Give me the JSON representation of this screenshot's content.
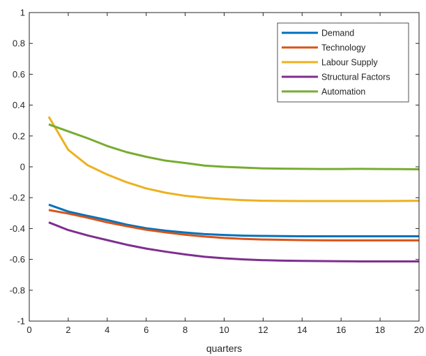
{
  "chart_data": {
    "type": "line",
    "title": "",
    "xlabel": "quarters",
    "ylabel": "",
    "xlim": [
      0,
      20
    ],
    "ylim": [
      -1,
      1
    ],
    "xticks": [
      0,
      2,
      4,
      6,
      8,
      10,
      12,
      14,
      16,
      18,
      20
    ],
    "yticks": [
      -1,
      -0.8,
      -0.6,
      -0.4,
      -0.2,
      0,
      0.2,
      0.4,
      0.6,
      0.8,
      1
    ],
    "grid": false,
    "legend_position": "top-right",
    "x": [
      1,
      2,
      3,
      4,
      5,
      6,
      7,
      8,
      9,
      10,
      11,
      12,
      13,
      14,
      15,
      16,
      17,
      18,
      19,
      20
    ],
    "series": [
      {
        "name": "Demand",
        "color": "#0072BD",
        "values": [
          -0.245,
          -0.29,
          -0.318,
          -0.345,
          -0.375,
          -0.398,
          -0.414,
          -0.426,
          -0.436,
          -0.442,
          -0.446,
          -0.448,
          -0.449,
          -0.45,
          -0.45,
          -0.45,
          -0.45,
          -0.45,
          -0.45,
          -0.45
        ]
      },
      {
        "name": "Technology",
        "color": "#D95319",
        "values": [
          -0.28,
          -0.303,
          -0.33,
          -0.36,
          -0.385,
          -0.408,
          -0.425,
          -0.44,
          -0.452,
          -0.461,
          -0.467,
          -0.471,
          -0.473,
          -0.475,
          -0.476,
          -0.477,
          -0.477,
          -0.477,
          -0.477,
          -0.477
        ]
      },
      {
        "name": "Labour Supply",
        "color": "#EDB120",
        "values": [
          0.325,
          0.11,
          0.01,
          -0.05,
          -0.1,
          -0.14,
          -0.168,
          -0.188,
          -0.2,
          -0.21,
          -0.216,
          -0.22,
          -0.221,
          -0.222,
          -0.222,
          -0.222,
          -0.222,
          -0.222,
          -0.221,
          -0.22
        ]
      },
      {
        "name": "Structural Factors",
        "color": "#7E2F8E",
        "values": [
          -0.36,
          -0.41,
          -0.445,
          -0.475,
          -0.505,
          -0.53,
          -0.55,
          -0.568,
          -0.583,
          -0.593,
          -0.6,
          -0.605,
          -0.608,
          -0.61,
          -0.611,
          -0.612,
          -0.613,
          -0.613,
          -0.613,
          -0.613
        ]
      },
      {
        "name": "Automation",
        "color": "#77AC30",
        "values": [
          0.275,
          0.23,
          0.185,
          0.135,
          0.095,
          0.065,
          0.04,
          0.025,
          0.008,
          0.0,
          -0.005,
          -0.01,
          -0.012,
          -0.013,
          -0.014,
          -0.014,
          -0.013,
          -0.014,
          -0.015,
          -0.016
        ]
      }
    ]
  }
}
